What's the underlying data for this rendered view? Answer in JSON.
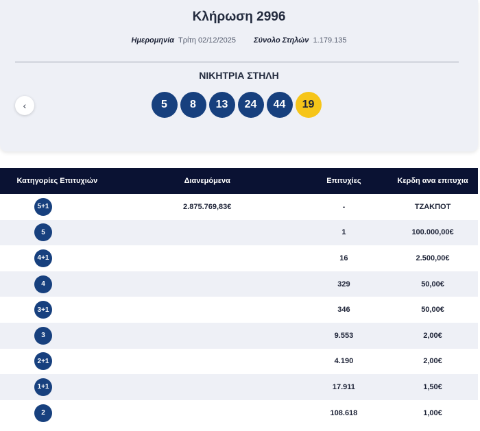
{
  "draw": {
    "title": "Κλήρωση 2996",
    "date_label": "Ημερομηνία",
    "date_value": "Τρίτη 02/12/2025",
    "columns_label": "Σύνολο Στηλών",
    "columns_value": "1.179.135",
    "winning_label": "ΝΙΚΗΤΡΙΑ ΣΤΗΛΗ",
    "numbers": [
      "5",
      "8",
      "13",
      "24",
      "44"
    ],
    "joker": "19",
    "prev_icon": "chevron-left-icon"
  },
  "colors": {
    "ball": "#17407e",
    "joker": "#f6c519",
    "header_bg": "#0a1233",
    "card_bg": "#eef0f6"
  },
  "table": {
    "headers": [
      "Κατηγορίες Επιτυχιών",
      "Διανεμόμενα",
      "Επιτυχίες",
      "Κερδη ανα επιτυχια"
    ],
    "rows": [
      {
        "category": "5+1",
        "distributed": "2.875.769,83€",
        "winners": "-",
        "prize": "ΤΖΑΚΠΟΤ"
      },
      {
        "category": "5",
        "distributed": "",
        "winners": "1",
        "prize": "100.000,00€"
      },
      {
        "category": "4+1",
        "distributed": "",
        "winners": "16",
        "prize": "2.500,00€"
      },
      {
        "category": "4",
        "distributed": "",
        "winners": "329",
        "prize": "50,00€"
      },
      {
        "category": "3+1",
        "distributed": "",
        "winners": "346",
        "prize": "50,00€"
      },
      {
        "category": "3",
        "distributed": "",
        "winners": "9.553",
        "prize": "2,00€"
      },
      {
        "category": "2+1",
        "distributed": "",
        "winners": "4.190",
        "prize": "2,00€"
      },
      {
        "category": "1+1",
        "distributed": "",
        "winners": "17.911",
        "prize": "1,50€"
      },
      {
        "category": "2",
        "distributed": "",
        "winners": "108.618",
        "prize": "1,00€"
      }
    ]
  }
}
